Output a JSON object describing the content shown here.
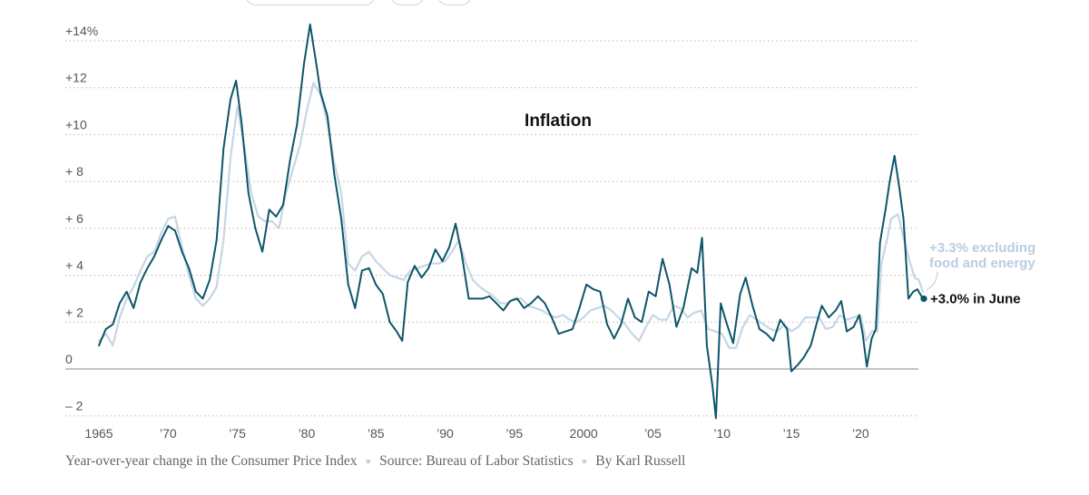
{
  "chart_data": {
    "type": "line",
    "title": "Inflation",
    "ylim": [
      -2.6,
      15
    ],
    "xlim": [
      1965,
      2024.5
    ],
    "y_ticks": [
      {
        "value": 14,
        "label": "+14%"
      },
      {
        "value": 12,
        "label": "+12"
      },
      {
        "value": 10,
        "label": "+10"
      },
      {
        "value": 8,
        "label": "+ 8"
      },
      {
        "value": 6,
        "label": "+ 6"
      },
      {
        "value": 4,
        "label": "+ 4"
      },
      {
        "value": 2,
        "label": "+ 2"
      },
      {
        "value": 0,
        "label": "0"
      },
      {
        "value": -2,
        "label": "– 2"
      }
    ],
    "x_ticks": [
      {
        "value": 1965,
        "label": "1965"
      },
      {
        "value": 1970,
        "label": "’70"
      },
      {
        "value": 1975,
        "label": "’75"
      },
      {
        "value": 1980,
        "label": "’80"
      },
      {
        "value": 1985,
        "label": "’85"
      },
      {
        "value": 1990,
        "label": "’90"
      },
      {
        "value": 1995,
        "label": "’95"
      },
      {
        "value": 2000,
        "label": "2000"
      },
      {
        "value": 2005,
        "label": "’05"
      },
      {
        "value": 2010,
        "label": "’10"
      },
      {
        "value": 2015,
        "label": "’15"
      },
      {
        "value": 2020,
        "label": "’20"
      }
    ],
    "grid": "horizontal dotted",
    "series": [
      {
        "key": "headline",
        "color": "#0d5569",
        "annotation": "+3.0% in June",
        "points": [
          [
            1965.0,
            1.0
          ],
          [
            1965.5,
            1.7
          ],
          [
            1966.0,
            1.9
          ],
          [
            1966.5,
            2.8
          ],
          [
            1967.0,
            3.3
          ],
          [
            1967.5,
            2.6
          ],
          [
            1968.0,
            3.7
          ],
          [
            1968.5,
            4.3
          ],
          [
            1969.0,
            4.8
          ],
          [
            1969.5,
            5.5
          ],
          [
            1970.0,
            6.1
          ],
          [
            1970.5,
            5.9
          ],
          [
            1971.0,
            5.0
          ],
          [
            1971.5,
            4.3
          ],
          [
            1972.0,
            3.3
          ],
          [
            1972.5,
            3.0
          ],
          [
            1973.0,
            3.8
          ],
          [
            1973.5,
            5.5
          ],
          [
            1974.0,
            9.4
          ],
          [
            1974.5,
            11.5
          ],
          [
            1974.9,
            12.3
          ],
          [
            1975.3,
            10.5
          ],
          [
            1975.8,
            7.5
          ],
          [
            1976.3,
            6.0
          ],
          [
            1976.8,
            5.0
          ],
          [
            1977.3,
            6.8
          ],
          [
            1977.8,
            6.5
          ],
          [
            1978.3,
            7.0
          ],
          [
            1978.8,
            8.9
          ],
          [
            1979.3,
            10.4
          ],
          [
            1979.8,
            13.0
          ],
          [
            1980.25,
            14.7
          ],
          [
            1980.7,
            13.0
          ],
          [
            1981.0,
            11.8
          ],
          [
            1981.5,
            10.8
          ],
          [
            1982.0,
            8.3
          ],
          [
            1982.5,
            6.4
          ],
          [
            1983.0,
            3.6
          ],
          [
            1983.5,
            2.6
          ],
          [
            1984.0,
            4.2
          ],
          [
            1984.5,
            4.3
          ],
          [
            1985.0,
            3.6
          ],
          [
            1985.5,
            3.2
          ],
          [
            1986.0,
            2.0
          ],
          [
            1986.5,
            1.6
          ],
          [
            1986.9,
            1.2
          ],
          [
            1987.3,
            3.7
          ],
          [
            1987.8,
            4.4
          ],
          [
            1988.3,
            3.9
          ],
          [
            1988.8,
            4.3
          ],
          [
            1989.3,
            5.1
          ],
          [
            1989.8,
            4.6
          ],
          [
            1990.3,
            5.2
          ],
          [
            1990.75,
            6.2
          ],
          [
            1991.2,
            4.9
          ],
          [
            1991.7,
            3.0
          ],
          [
            1992.2,
            3.0
          ],
          [
            1992.7,
            3.0
          ],
          [
            1993.2,
            3.1
          ],
          [
            1993.7,
            2.8
          ],
          [
            1994.2,
            2.5
          ],
          [
            1994.7,
            2.9
          ],
          [
            1995.2,
            3.0
          ],
          [
            1995.7,
            2.6
          ],
          [
            1996.2,
            2.8
          ],
          [
            1996.7,
            3.1
          ],
          [
            1997.2,
            2.8
          ],
          [
            1997.7,
            2.2
          ],
          [
            1998.2,
            1.5
          ],
          [
            1998.7,
            1.6
          ],
          [
            1999.2,
            1.7
          ],
          [
            1999.7,
            2.6
          ],
          [
            2000.2,
            3.6
          ],
          [
            2000.7,
            3.4
          ],
          [
            2001.2,
            3.3
          ],
          [
            2001.7,
            1.9
          ],
          [
            2002.2,
            1.3
          ],
          [
            2002.7,
            1.9
          ],
          [
            2003.2,
            3.0
          ],
          [
            2003.7,
            2.2
          ],
          [
            2004.2,
            2.0
          ],
          [
            2004.7,
            3.3
          ],
          [
            2005.2,
            3.1
          ],
          [
            2005.7,
            4.7
          ],
          [
            2006.2,
            3.6
          ],
          [
            2006.7,
            1.8
          ],
          [
            2007.2,
            2.6
          ],
          [
            2007.8,
            4.3
          ],
          [
            2008.2,
            4.1
          ],
          [
            2008.55,
            5.6
          ],
          [
            2008.9,
            1.0
          ],
          [
            2009.3,
            -0.7
          ],
          [
            2009.55,
            -2.1
          ],
          [
            2009.9,
            2.8
          ],
          [
            2010.3,
            2.0
          ],
          [
            2010.8,
            1.1
          ],
          [
            2011.3,
            3.2
          ],
          [
            2011.7,
            3.9
          ],
          [
            2012.2,
            2.7
          ],
          [
            2012.7,
            1.7
          ],
          [
            2013.2,
            1.5
          ],
          [
            2013.7,
            1.2
          ],
          [
            2014.2,
            2.1
          ],
          [
            2014.7,
            1.7
          ],
          [
            2015.0,
            -0.1
          ],
          [
            2015.5,
            0.2
          ],
          [
            2015.9,
            0.5
          ],
          [
            2016.4,
            1.0
          ],
          [
            2016.9,
            2.1
          ],
          [
            2017.2,
            2.7
          ],
          [
            2017.7,
            2.2
          ],
          [
            2018.2,
            2.5
          ],
          [
            2018.6,
            2.9
          ],
          [
            2019.0,
            1.6
          ],
          [
            2019.5,
            1.8
          ],
          [
            2019.9,
            2.3
          ],
          [
            2020.15,
            1.5
          ],
          [
            2020.45,
            0.1
          ],
          [
            2020.8,
            1.3
          ],
          [
            2021.1,
            1.7
          ],
          [
            2021.4,
            5.4
          ],
          [
            2021.8,
            6.8
          ],
          [
            2022.1,
            8.0
          ],
          [
            2022.45,
            9.1
          ],
          [
            2022.8,
            7.7
          ],
          [
            2023.1,
            6.4
          ],
          [
            2023.45,
            3.0
          ],
          [
            2023.8,
            3.3
          ],
          [
            2024.1,
            3.4
          ],
          [
            2024.5,
            3.0
          ]
        ]
      },
      {
        "key": "core",
        "color": "#c6d6e4",
        "annotation_lines": [
          "+3.3% excluding",
          "food and energy"
        ],
        "points": [
          [
            1965.0,
            1.2
          ],
          [
            1965.5,
            1.5
          ],
          [
            1966.0,
            1.0
          ],
          [
            1966.5,
            2.2
          ],
          [
            1967.0,
            3.0
          ],
          [
            1967.5,
            3.5
          ],
          [
            1968.0,
            4.2
          ],
          [
            1968.5,
            4.8
          ],
          [
            1969.0,
            5.0
          ],
          [
            1969.5,
            5.8
          ],
          [
            1970.0,
            6.4
          ],
          [
            1970.5,
            6.5
          ],
          [
            1971.0,
            5.2
          ],
          [
            1971.5,
            4.0
          ],
          [
            1972.0,
            3.0
          ],
          [
            1972.5,
            2.7
          ],
          [
            1973.0,
            3.0
          ],
          [
            1973.5,
            3.5
          ],
          [
            1974.0,
            5.5
          ],
          [
            1974.5,
            9.0
          ],
          [
            1975.0,
            11.2
          ],
          [
            1975.5,
            9.5
          ],
          [
            1976.0,
            7.5
          ],
          [
            1976.5,
            6.5
          ],
          [
            1977.0,
            6.3
          ],
          [
            1977.5,
            6.3
          ],
          [
            1978.0,
            6.0
          ],
          [
            1978.5,
            7.5
          ],
          [
            1979.0,
            8.5
          ],
          [
            1979.5,
            9.5
          ],
          [
            1980.0,
            11.0
          ],
          [
            1980.5,
            12.2
          ],
          [
            1981.0,
            11.7
          ],
          [
            1981.5,
            10.5
          ],
          [
            1982.0,
            8.8
          ],
          [
            1982.5,
            7.5
          ],
          [
            1983.0,
            4.5
          ],
          [
            1983.5,
            4.2
          ],
          [
            1984.0,
            4.8
          ],
          [
            1984.5,
            5.0
          ],
          [
            1985.0,
            4.6
          ],
          [
            1985.5,
            4.3
          ],
          [
            1986.0,
            4.0
          ],
          [
            1986.5,
            3.9
          ],
          [
            1987.0,
            3.8
          ],
          [
            1987.5,
            4.2
          ],
          [
            1988.0,
            4.3
          ],
          [
            1988.5,
            4.4
          ],
          [
            1989.0,
            4.5
          ],
          [
            1989.5,
            4.5
          ],
          [
            1990.0,
            4.6
          ],
          [
            1990.5,
            5.0
          ],
          [
            1991.0,
            5.5
          ],
          [
            1991.5,
            4.5
          ],
          [
            1992.0,
            3.8
          ],
          [
            1992.5,
            3.5
          ],
          [
            1993.0,
            3.3
          ],
          [
            1993.5,
            3.1
          ],
          [
            1994.0,
            2.8
          ],
          [
            1994.5,
            2.8
          ],
          [
            1995.0,
            3.0
          ],
          [
            1995.5,
            3.0
          ],
          [
            1996.0,
            2.7
          ],
          [
            1996.5,
            2.6
          ],
          [
            1997.0,
            2.5
          ],
          [
            1997.5,
            2.3
          ],
          [
            1998.0,
            2.2
          ],
          [
            1998.5,
            2.3
          ],
          [
            1999.0,
            2.1
          ],
          [
            1999.5,
            2.0
          ],
          [
            2000.0,
            2.2
          ],
          [
            2000.5,
            2.5
          ],
          [
            2001.0,
            2.6
          ],
          [
            2001.5,
            2.7
          ],
          [
            2002.0,
            2.5
          ],
          [
            2002.5,
            2.2
          ],
          [
            2003.0,
            1.9
          ],
          [
            2003.5,
            1.5
          ],
          [
            2004.0,
            1.2
          ],
          [
            2004.5,
            1.8
          ],
          [
            2005.0,
            2.3
          ],
          [
            2005.5,
            2.1
          ],
          [
            2006.0,
            2.1
          ],
          [
            2006.5,
            2.7
          ],
          [
            2007.0,
            2.6
          ],
          [
            2007.5,
            2.2
          ],
          [
            2008.0,
            2.4
          ],
          [
            2008.5,
            2.5
          ],
          [
            2009.0,
            1.7
          ],
          [
            2009.5,
            1.6
          ],
          [
            2010.0,
            1.5
          ],
          [
            2010.5,
            0.9
          ],
          [
            2011.0,
            0.9
          ],
          [
            2011.5,
            1.8
          ],
          [
            2012.0,
            2.3
          ],
          [
            2012.5,
            2.1
          ],
          [
            2013.0,
            1.9
          ],
          [
            2013.5,
            1.7
          ],
          [
            2014.0,
            1.6
          ],
          [
            2014.5,
            1.9
          ],
          [
            2015.0,
            1.6
          ],
          [
            2015.5,
            1.8
          ],
          [
            2016.0,
            2.2
          ],
          [
            2016.5,
            2.2
          ],
          [
            2017.0,
            2.2
          ],
          [
            2017.5,
            1.7
          ],
          [
            2018.0,
            1.8
          ],
          [
            2018.5,
            2.3
          ],
          [
            2019.0,
            2.1
          ],
          [
            2019.5,
            2.2
          ],
          [
            2020.0,
            2.3
          ],
          [
            2020.4,
            1.2
          ],
          [
            2020.8,
            1.6
          ],
          [
            2021.2,
            1.6
          ],
          [
            2021.5,
            4.5
          ],
          [
            2021.9,
            5.5
          ],
          [
            2022.2,
            6.4
          ],
          [
            2022.7,
            6.6
          ],
          [
            2023.1,
            5.6
          ],
          [
            2023.5,
            4.7
          ],
          [
            2023.9,
            3.9
          ],
          [
            2024.2,
            3.8
          ],
          [
            2024.5,
            3.3
          ]
        ]
      }
    ]
  },
  "footer": {
    "description": "Year-over-year change in the Consumer Price Index",
    "source": "Source: Bureau of Labor Statistics",
    "byline": "By Karl Russell"
  }
}
